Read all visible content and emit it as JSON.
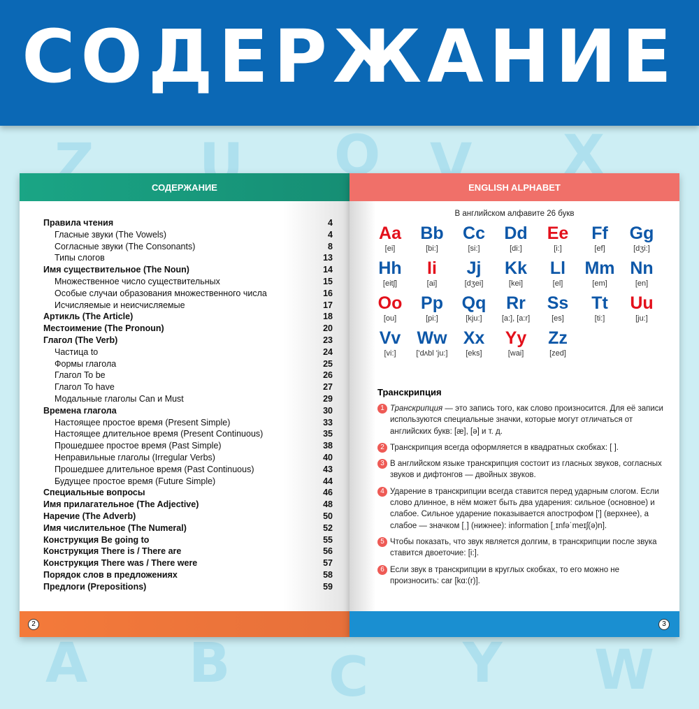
{
  "banner_title": "СОДЕРЖАНИЕ",
  "bg_letters_top": [
    "Z",
    "U",
    "Q",
    "V",
    "X"
  ],
  "bg_letters_bottom": [
    "A",
    "B",
    "C",
    "Y",
    "W"
  ],
  "left_page": {
    "header": "СОДЕРЖАНИЕ",
    "page_number": "2",
    "footer_color": "#f47a3a",
    "header_color": "#1aa585",
    "toc": [
      {
        "t": "Правила чтения",
        "n": "4",
        "bold": true
      },
      {
        "t": "Гласные звуки (The Vowels)",
        "n": "4"
      },
      {
        "t": "Согласные звуки (The Consonants)",
        "n": "8"
      },
      {
        "t": "Типы слогов",
        "n": "13"
      },
      {
        "t": "Имя существительное (The Noun)",
        "n": "14",
        "bold": true
      },
      {
        "t": "Множественное число существительных",
        "n": "15"
      },
      {
        "t": "Особые случаи образования множественного числа",
        "n": "16"
      },
      {
        "t": "Исчисляемые и неисчисляемые",
        "n": "17"
      },
      {
        "t": "Артикль (The Article)",
        "n": "18",
        "bold": true
      },
      {
        "t": "Местоимение (The Pronoun)",
        "n": "20",
        "bold": true
      },
      {
        "t": "Глагол (The Verb)",
        "n": "23",
        "bold": true
      },
      {
        "t": "Частица to",
        "n": "24"
      },
      {
        "t": "Формы глагола",
        "n": "25"
      },
      {
        "t": "Глагол To be",
        "n": "26"
      },
      {
        "t": "Глагол To have",
        "n": "27"
      },
      {
        "t": "Модальные глаголы Can и Must",
        "n": "29"
      },
      {
        "t": "Времена глагола",
        "n": "30",
        "bold": true
      },
      {
        "t": "Настоящее простое время (Present Simple)",
        "n": "33"
      },
      {
        "t": "Настоящее длительное время (Present Continuous)",
        "n": "35"
      },
      {
        "t": "Прошедшее простое время (Past Simple)",
        "n": "38"
      },
      {
        "t": "Неправильные глаголы (Irregular Verbs)",
        "n": "40"
      },
      {
        "t": "Прошедшее длительное время (Past Continuous)",
        "n": "43"
      },
      {
        "t": "Будущее простое время (Future Simple)",
        "n": "44"
      },
      {
        "t": "Специальные вопросы",
        "n": "46",
        "bold": true
      },
      {
        "t": "Имя прилагательное (The Adjective)",
        "n": "48",
        "bold": true
      },
      {
        "t": "Наречие (The Adverb)",
        "n": "50",
        "bold": true
      },
      {
        "t": "Имя числительное (The Numeral)",
        "n": "52",
        "bold": true
      },
      {
        "t": "Конструкция Be going to",
        "n": "55",
        "bold": true
      },
      {
        "t": "Конструкция There is / There are",
        "n": "56",
        "bold": true
      },
      {
        "t": "Конструкция There was / There were",
        "n": "57",
        "bold": true
      },
      {
        "t": "Порядок слов в предложениях",
        "n": "58",
        "bold": true
      },
      {
        "t": "Предлоги (Prepositions)",
        "n": "59",
        "bold": true
      }
    ]
  },
  "right_page": {
    "header": "ENGLISH ALPHABET",
    "page_number": "3",
    "count_text": "В английском алфавите 26 букв",
    "vowel_color": "#e3101b",
    "consonant_color": "#0d57a8",
    "letters": [
      {
        "l": "Aa",
        "p": "[ei]",
        "v": true
      },
      {
        "l": "Bb",
        "p": "[bi:]"
      },
      {
        "l": "Cc",
        "p": "[si:]"
      },
      {
        "l": "Dd",
        "p": "[di:]"
      },
      {
        "l": "Ee",
        "p": "[i:]",
        "v": true
      },
      {
        "l": "Ff",
        "p": "[ef]"
      },
      {
        "l": "Gg",
        "p": "[dʒi:]"
      },
      {
        "l": "Hh",
        "p": "[eitʃ]"
      },
      {
        "l": "Ii",
        "p": "[ai]",
        "v": true
      },
      {
        "l": "Jj",
        "p": "[dʒei]"
      },
      {
        "l": "Kk",
        "p": "[kei]"
      },
      {
        "l": "Ll",
        "p": "[el]"
      },
      {
        "l": "Mm",
        "p": "[em]"
      },
      {
        "l": "Nn",
        "p": "[en]"
      },
      {
        "l": "Oo",
        "p": "[ou]",
        "v": true
      },
      {
        "l": "Pp",
        "p": "[pi:]"
      },
      {
        "l": "Qq",
        "p": "[kju:]"
      },
      {
        "l": "Rr",
        "p": "[a:], [a:r]"
      },
      {
        "l": "Ss",
        "p": "[es]"
      },
      {
        "l": "Tt",
        "p": "[ti:]"
      },
      {
        "l": "Uu",
        "p": "[ju:]",
        "v": true
      },
      {
        "l": "Vv",
        "p": "[vi:]"
      },
      {
        "l": "Ww",
        "p": "['dʌbl 'ju:]"
      },
      {
        "l": "Xx",
        "p": "[eks]"
      },
      {
        "l": "Yy",
        "p": "[wai]",
        "v": true
      },
      {
        "l": "Zz",
        "p": "[zed]"
      }
    ],
    "transcription": {
      "title": "Транскрипция",
      "items": [
        {
          "n": "1",
          "em": "Транскрипция",
          "t": " — это запись того, как слово произносится. Для её записи используются специальные значки, которые могут отличаться от английских букв: [æ], [ə] и т. д."
        },
        {
          "n": "2",
          "t": "Транскрипция всегда оформляется в квадратных скобках: [ ]."
        },
        {
          "n": "3",
          "t": "В английском языке транскрипция состоит из гласных звуков, согласных звуков и дифтонгов — двойных звуков."
        },
        {
          "n": "4",
          "t": "Ударение в транскрипции всегда ставится перед ударным слогом. Если слово длинное, в нём может быть два ударения: сильное (основное) и слабое. Сильное ударение показывается апострофом ['] (верхнее), а слабое — значком [ˌ] (нижнее): information [ˌɪnfəˈmeɪʃ(ə)n]."
        },
        {
          "n": "5",
          "t": "Чтобы показать, что звук является долгим, в транскрипции после звука ставится двоеточие: [i:]."
        },
        {
          "n": "6",
          "t": "Если звук в транскрипции в круглых скобках, то его можно не произносить: car [kɑ:(r)]."
        }
      ]
    }
  }
}
